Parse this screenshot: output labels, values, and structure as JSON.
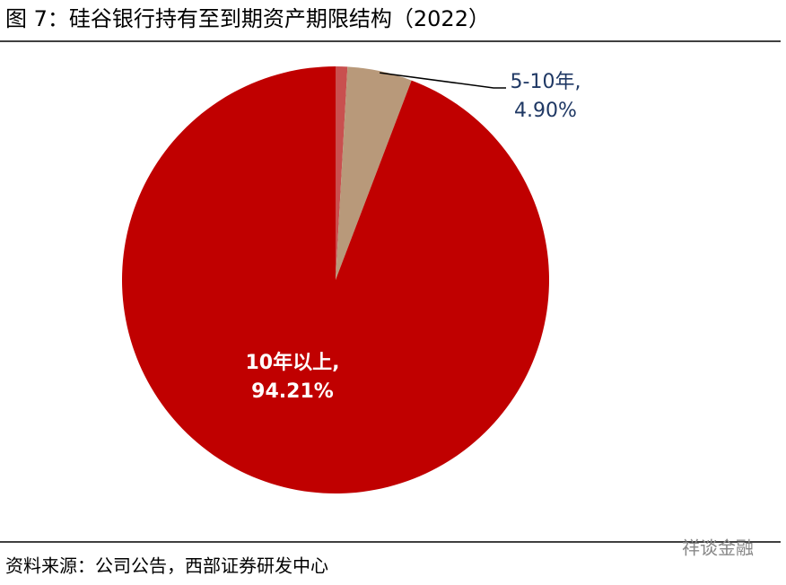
{
  "chart_data": {
    "type": "pie",
    "title": "图 7：硅谷银行持有至到期资产期限结构（2022）",
    "categories": [
      null,
      "5-10年,",
      "10年以上,"
    ],
    "values": [
      0.89,
      4.9,
      94.21
    ],
    "value_labels": [
      null,
      "4.90%",
      "94.21%"
    ],
    "colors": [
      "#c9504f",
      "#b8997a",
      "#c00000"
    ],
    "source": "资料来源：公司公告，西部证券研发中心",
    "watermark": "祥谈金融"
  }
}
